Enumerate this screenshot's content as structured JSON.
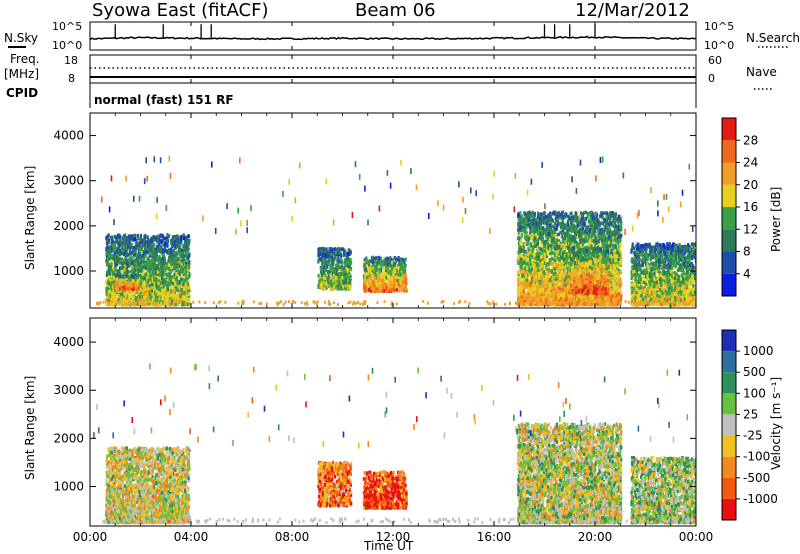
{
  "header": {
    "station": "Syowa East (fitACF)",
    "beam": "Beam 06",
    "date": "12/Mar/2012"
  },
  "nsky_panel": {
    "left_label": "N.Sky",
    "left_ticks": [
      "10^5",
      "10^0"
    ],
    "right_label": "N.Search",
    "right_ticks": [
      "10^5",
      "10^0"
    ]
  },
  "freq_panel": {
    "left_label_top": "Freq.",
    "left_label_bottom": "[MHz]",
    "left_ticks": [
      "18",
      "8"
    ],
    "right_label": "Nave",
    "right_ticks": [
      "60",
      "0"
    ]
  },
  "cpid_panel": {
    "label": "CPID",
    "mode": "normal (fast) 151 RF"
  },
  "x_axis": {
    "label": "Time UT",
    "ticks": [
      "00:00",
      "04:00",
      "08:00",
      "12:00",
      "16:00",
      "20:00",
      "00:00"
    ]
  },
  "power_panel": {
    "ylabel": "Slant Range [km]",
    "yticks": [
      "4000",
      "3000",
      "2000",
      "1000"
    ],
    "colorbar_label": "Power [dB]",
    "colorbar_ticks": [
      "28",
      "24",
      "20",
      "16",
      "12",
      "8",
      "4"
    ]
  },
  "velocity_panel": {
    "ylabel": "Slant Range [km]",
    "yticks": [
      "4000",
      "3000",
      "2000",
      "1000"
    ],
    "colorbar_label": "Velocity [m s⁻¹]",
    "colorbar_ticks": [
      "1000",
      "500",
      "100",
      "25",
      "-25",
      "-100",
      "-500",
      "-1000"
    ]
  },
  "colors": {
    "power_scale": [
      "#0a1ee0",
      "#1e4ea8",
      "#2e7a5a",
      "#3aa048",
      "#e6d21e",
      "#f0a028",
      "#f06a1e",
      "#e41a14"
    ],
    "velocity_scale": [
      "#1d2fb5",
      "#2c6fa0",
      "#2f8f5c",
      "#68c040",
      "#c0c0c0",
      "#f0c020",
      "#f08a1e",
      "#f25a10",
      "#e81010"
    ]
  },
  "chart_data": [
    {
      "type": "line",
      "title": "N.Sky / N.Search",
      "x_range_hours": [
        0,
        24
      ],
      "ylim_log10": [
        0,
        5
      ],
      "series": [
        {
          "name": "N.Sky",
          "x": [
            0,
            2,
            4,
            6,
            8,
            10,
            12,
            14,
            16,
            18,
            20,
            22,
            24
          ],
          "values_log10": [
            2.0,
            2.2,
            2.1,
            2.0,
            2.0,
            2.1,
            2.0,
            2.0,
            2.1,
            2.2,
            2.3,
            2.1,
            2.0
          ]
        }
      ],
      "spikes_hours": [
        1.0,
        2.9,
        4.4,
        4.8,
        18.0,
        18.4,
        19.0,
        20.0
      ]
    },
    {
      "type": "scatter",
      "title": "Freq. / Nave",
      "x_range_hours": [
        0,
        24
      ],
      "series": [
        {
          "name": "Freq.",
          "units": "MHz",
          "ylim": [
            8,
            18
          ],
          "values_constant": 10.3
        },
        {
          "name": "Nave",
          "ylim": [
            0,
            60
          ],
          "values_constant": 28
        }
      ]
    },
    {
      "type": "heatmap",
      "title": "Power [dB]",
      "x_range_hours": [
        0,
        24
      ],
      "ylim_km": [
        180,
        4500
      ],
      "color_range_db": [
        0,
        32
      ],
      "regions": [
        {
          "t_start": 0.6,
          "t_end": 3.9,
          "r_min": 250,
          "r_max": 1800,
          "level": 0.6
        },
        {
          "t_start": 0.9,
          "t_end": 1.9,
          "r_min": 600,
          "r_max": 900,
          "level": 0.9
        },
        {
          "t_start": 9.0,
          "t_end": 10.3,
          "r_min": 600,
          "r_max": 1500,
          "level": 0.55
        },
        {
          "t_start": 10.8,
          "t_end": 12.5,
          "r_min": 550,
          "r_max": 1300,
          "level": 0.85
        },
        {
          "t_start": 16.9,
          "t_end": 21.0,
          "r_min": 250,
          "r_max": 2300,
          "level": 0.75
        },
        {
          "t_start": 19.0,
          "t_end": 20.5,
          "r_min": 500,
          "r_max": 1500,
          "level": 0.95
        },
        {
          "t_start": 21.4,
          "t_end": 24.0,
          "r_min": 250,
          "r_max": 1600,
          "level": 0.65
        }
      ]
    },
    {
      "type": "heatmap",
      "title": "Velocity [m s⁻¹]",
      "x_range_hours": [
        0,
        24
      ],
      "ylim_km": [
        180,
        4500
      ],
      "color_range": [
        -1000,
        1000
      ],
      "regions": [
        {
          "t_start": 0.6,
          "t_end": 3.9,
          "r_min": 250,
          "r_max": 1800,
          "level": 0.55
        },
        {
          "t_start": 9.0,
          "t_end": 10.3,
          "r_min": 600,
          "r_max": 1500,
          "level": 0.8
        },
        {
          "t_start": 10.8,
          "t_end": 12.5,
          "r_min": 550,
          "r_max": 1300,
          "level": 0.92
        },
        {
          "t_start": 16.9,
          "t_end": 21.0,
          "r_min": 250,
          "r_max": 2300,
          "level": 0.5
        },
        {
          "t_start": 21.4,
          "t_end": 24.0,
          "r_min": 250,
          "r_max": 1600,
          "level": 0.45
        }
      ]
    }
  ]
}
